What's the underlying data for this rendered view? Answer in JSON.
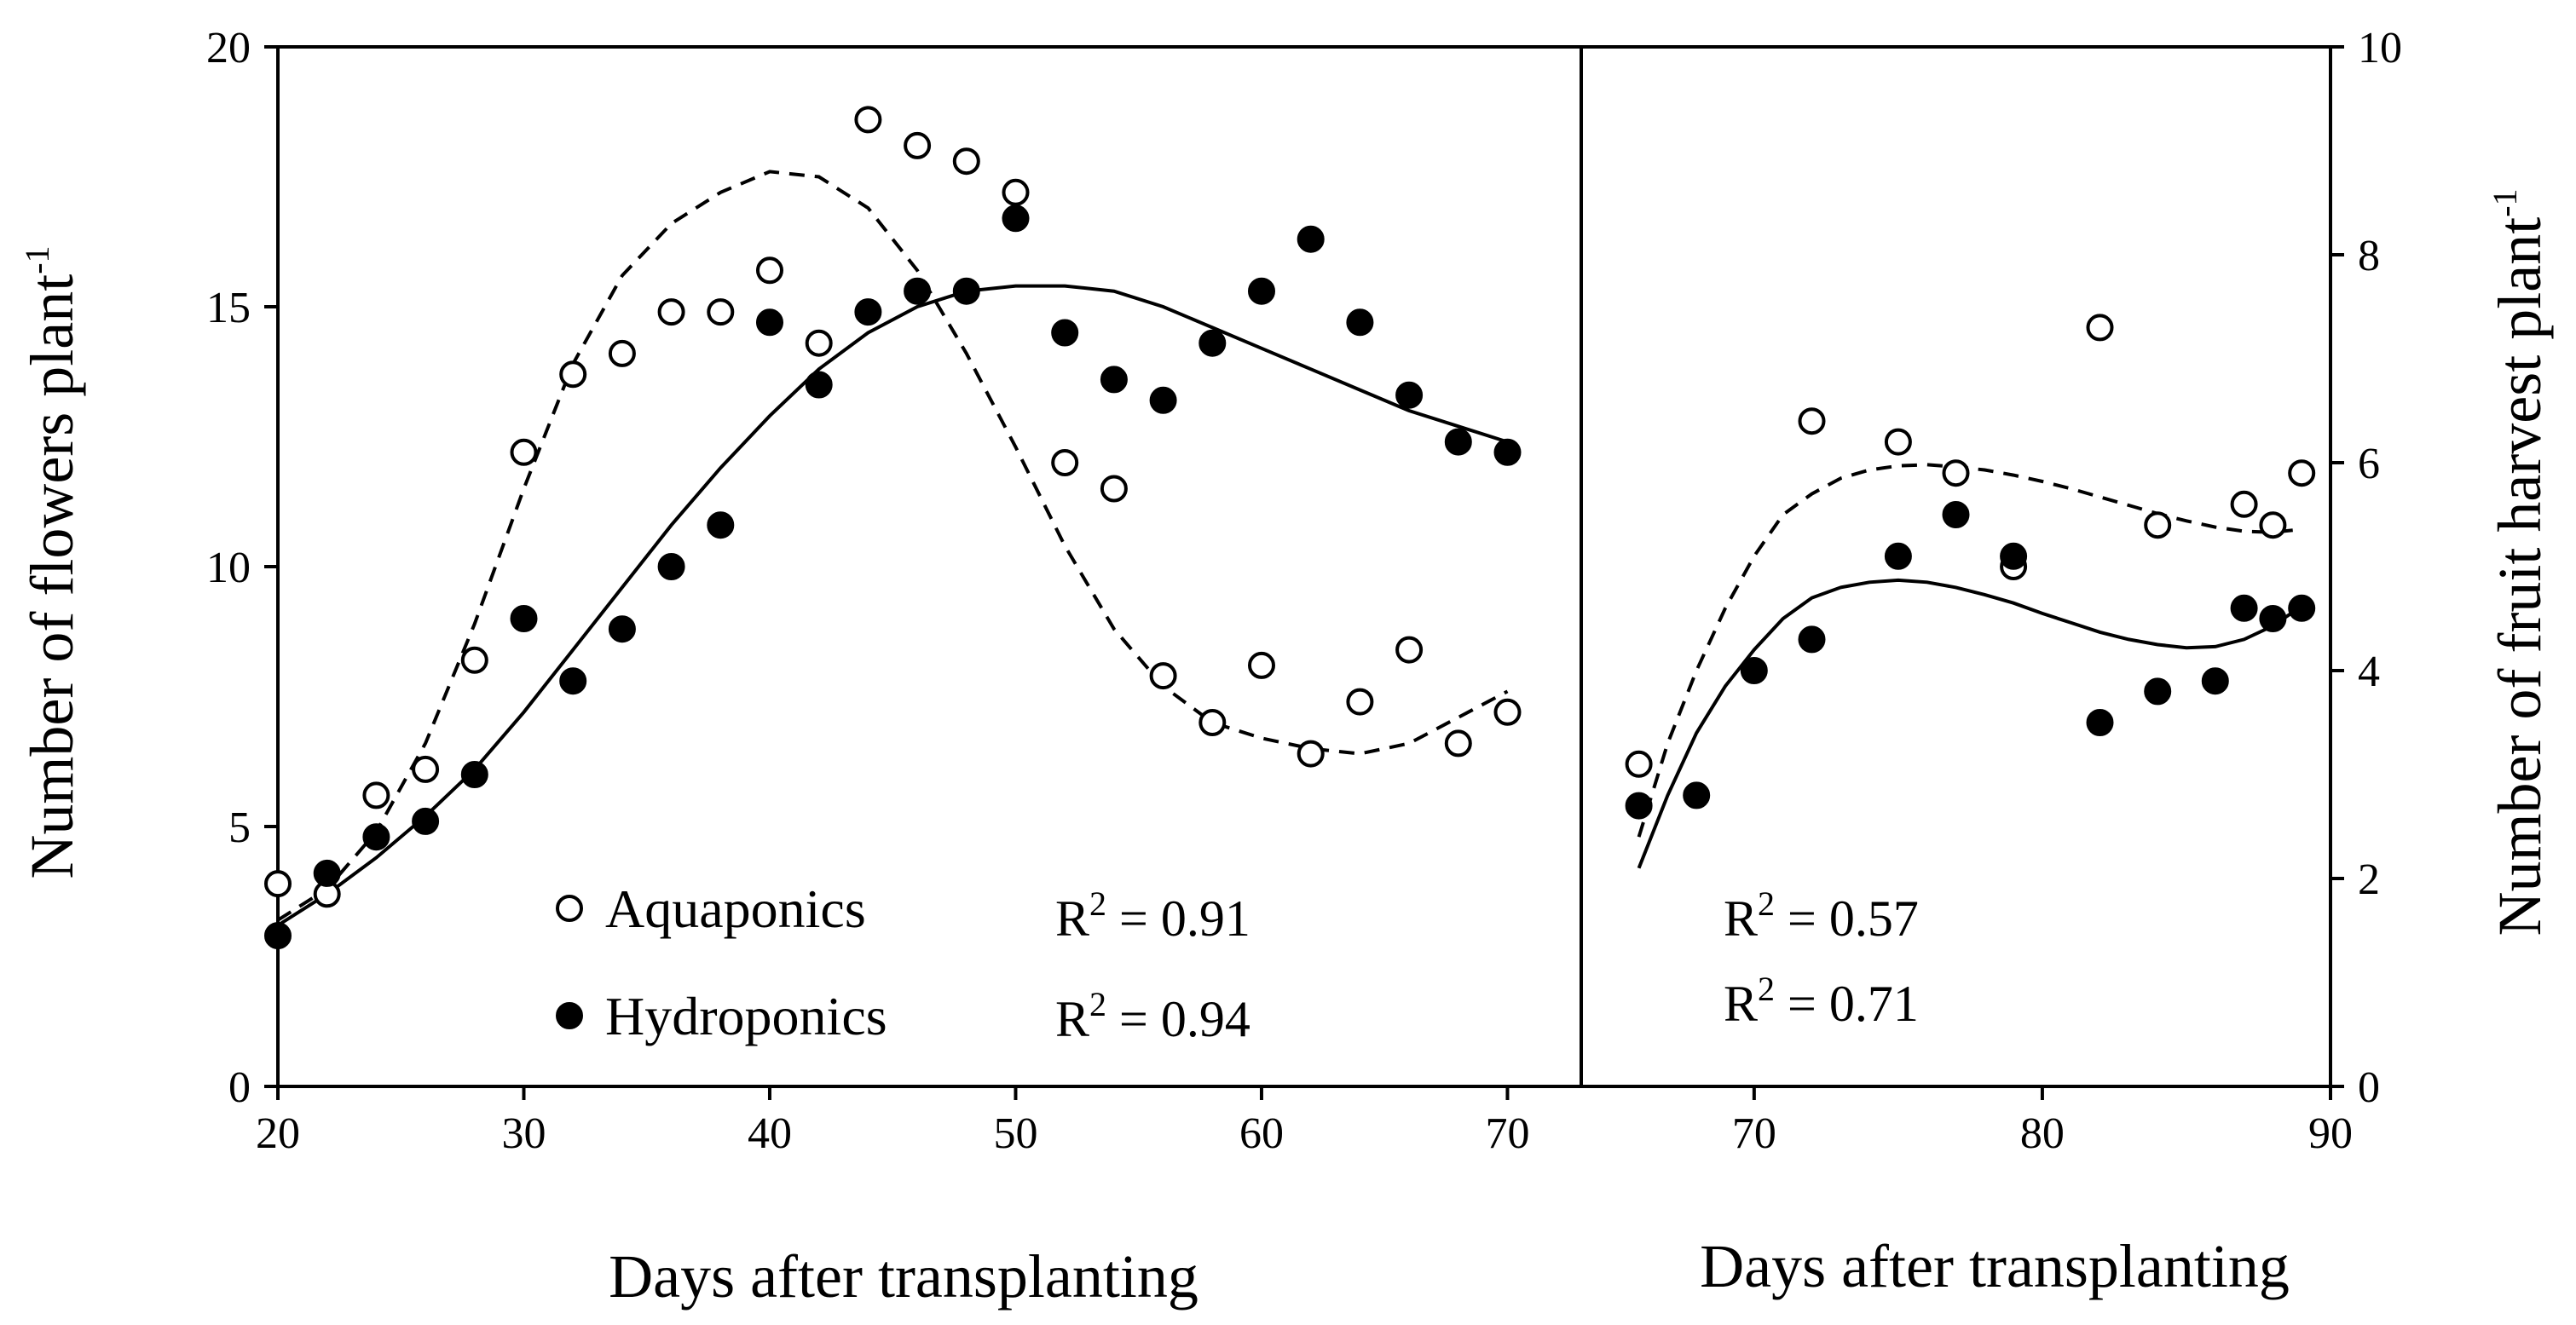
{
  "chart_data": [
    {
      "type": "scatter",
      "panel": "left",
      "xlabel": "Days after transplanting",
      "ylabel": "Number of flowers plant",
      "ylabel_sup": "-1",
      "xlim": [
        20,
        73
      ],
      "ylim": [
        0,
        20
      ],
      "xticks": [
        20,
        30,
        40,
        50,
        60,
        70
      ],
      "yticks": [
        0,
        5,
        10,
        15,
        20
      ],
      "series": [
        {
          "name": "Aquaponics",
          "marker": "open-circle",
          "r2_label": "R",
          "r2_sup": "2",
          "r2_value": " = 0.91",
          "x": [
            20,
            22,
            24,
            26,
            28,
            30,
            32,
            34,
            36,
            38,
            40,
            42,
            44,
            46,
            48,
            50,
            52,
            54,
            56,
            58,
            60,
            62,
            64,
            66,
            68,
            70
          ],
          "y": [
            3.9,
            3.7,
            5.6,
            6.1,
            8.2,
            12.2,
            13.7,
            14.1,
            14.9,
            14.9,
            15.7,
            14.3,
            18.6,
            18.1,
            17.8,
            17.2,
            12.0,
            11.5,
            7.9,
            7.0,
            8.1,
            6.4,
            7.4,
            8.4,
            6.6,
            7.2
          ],
          "fit": {
            "style": "dashed",
            "x": [
              20,
              22,
              24,
              26,
              28,
              30,
              32,
              34,
              36,
              38,
              40,
              42,
              44,
              46,
              48,
              50,
              52,
              54,
              56,
              58,
              60,
              62,
              64,
              66,
              68,
              70
            ],
            "y": [
              3.2,
              3.8,
              4.9,
              6.6,
              8.9,
              11.5,
              13.9,
              15.6,
              16.6,
              17.2,
              17.6,
              17.5,
              16.9,
              15.7,
              14.1,
              12.3,
              10.4,
              8.8,
              7.7,
              7.0,
              6.7,
              6.5,
              6.4,
              6.6,
              7.1,
              7.6
            ]
          }
        },
        {
          "name": "Hydroponics",
          "marker": "filled-circle",
          "r2_label": "R",
          "r2_sup": "2",
          "r2_value": " = 0.94",
          "x": [
            20,
            22,
            24,
            26,
            28,
            30,
            32,
            34,
            36,
            38,
            40,
            42,
            44,
            46,
            48,
            50,
            52,
            54,
            56,
            58,
            60,
            62,
            64,
            66,
            68,
            70
          ],
          "y": [
            2.9,
            4.1,
            4.8,
            5.1,
            6.0,
            9.0,
            7.8,
            8.8,
            10.0,
            10.8,
            14.7,
            13.5,
            14.9,
            15.3,
            15.3,
            16.7,
            14.5,
            13.6,
            13.2,
            14.3,
            15.3,
            16.3,
            14.7,
            13.3,
            12.4,
            12.2
          ],
          "fit": {
            "style": "solid",
            "x": [
              20,
              22,
              24,
              26,
              28,
              30,
              32,
              34,
              36,
              38,
              40,
              42,
              44,
              46,
              48,
              50,
              52,
              54,
              56,
              58,
              60,
              62,
              64,
              66,
              68,
              70
            ],
            "y": [
              3.1,
              3.7,
              4.4,
              5.2,
              6.1,
              7.2,
              8.4,
              9.6,
              10.8,
              11.9,
              12.9,
              13.8,
              14.5,
              15.0,
              15.3,
              15.4,
              15.4,
              15.3,
              15.0,
              14.6,
              14.2,
              13.8,
              13.4,
              13.0,
              12.7,
              12.4
            ]
          }
        }
      ]
    },
    {
      "type": "scatter",
      "panel": "right",
      "xlabel": "Days after transplanting",
      "ylabel": "Number of fruit harvest plant",
      "ylabel_sup": "-1",
      "xlim": [
        64,
        90
      ],
      "ylim": [
        0,
        10
      ],
      "xticks": [
        70,
        80,
        90
      ],
      "yticks": [
        0,
        2,
        4,
        6,
        8,
        10
      ],
      "series": [
        {
          "name": "Aquaponics",
          "marker": "open-circle",
          "r2_label": "R",
          "r2_sup": "2",
          "r2_value": " = 0.57",
          "x": [
            66,
            72,
            75,
            77,
            79,
            82,
            84,
            87,
            88,
            89
          ],
          "y": [
            3.1,
            6.4,
            6.2,
            5.9,
            5.0,
            7.3,
            5.4,
            5.6,
            5.4,
            5.9
          ],
          "fit": {
            "style": "dashed",
            "x": [
              66,
              67,
              68,
              69,
              70,
              71,
              72,
              73,
              74,
              75,
              76,
              77,
              78,
              79,
              80,
              81,
              82,
              83,
              84,
              85,
              86,
              87,
              88,
              89
            ],
            "y": [
              2.4,
              3.3,
              4.0,
              4.6,
              5.1,
              5.5,
              5.7,
              5.85,
              5.93,
              5.97,
              5.98,
              5.96,
              5.93,
              5.88,
              5.82,
              5.75,
              5.67,
              5.59,
              5.51,
              5.44,
              5.38,
              5.34,
              5.33,
              5.36
            ]
          }
        },
        {
          "name": "Hydroponics",
          "marker": "filled-circle",
          "r2_label": "R",
          "r2_sup": "2",
          "r2_value": " = 0.71",
          "x": [
            66,
            68,
            70,
            72,
            75,
            77,
            79,
            82,
            84,
            86,
            87,
            88,
            89
          ],
          "y": [
            2.7,
            2.8,
            4.0,
            4.3,
            5.1,
            5.5,
            5.1,
            3.5,
            3.8,
            3.9,
            4.6,
            4.5,
            4.6
          ],
          "fit": {
            "style": "solid",
            "x": [
              66,
              67,
              68,
              69,
              70,
              71,
              72,
              73,
              74,
              75,
              76,
              77,
              78,
              79,
              80,
              81,
              82,
              83,
              84,
              85,
              86,
              87,
              88,
              89
            ],
            "y": [
              2.1,
              2.8,
              3.4,
              3.85,
              4.2,
              4.5,
              4.7,
              4.8,
              4.85,
              4.87,
              4.85,
              4.8,
              4.73,
              4.65,
              4.55,
              4.46,
              4.37,
              4.3,
              4.25,
              4.22,
              4.23,
              4.3,
              4.43,
              4.62
            ]
          }
        }
      ]
    }
  ]
}
